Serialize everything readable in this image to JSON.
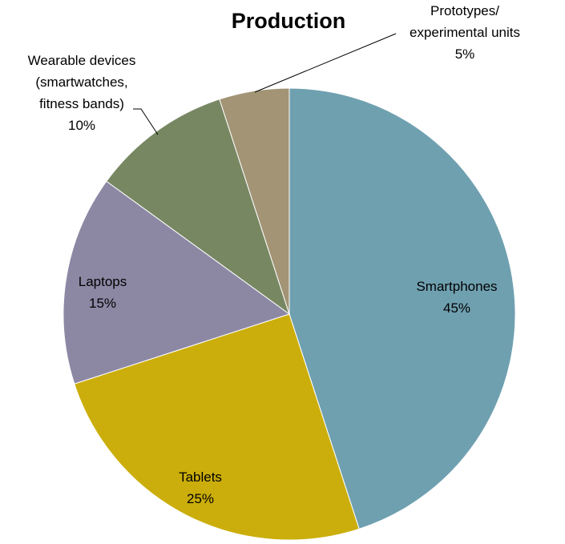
{
  "chart_data": {
    "type": "pie",
    "title": "Production",
    "start_angle_deg": 0,
    "direction": "clockwise",
    "slices": [
      {
        "label_lines": [
          "Smartphones"
        ],
        "percent_label": "45%",
        "value": 45,
        "color": "#6fa0b0"
      },
      {
        "label_lines": [
          "Tablets"
        ],
        "percent_label": "25%",
        "value": 25,
        "color": "#cbae0b"
      },
      {
        "label_lines": [
          "Laptops"
        ],
        "percent_label": "15%",
        "value": 15,
        "color": "#8c88a4"
      },
      {
        "label_lines": [
          "Wearable devices",
          "(smartwatches,",
          "fitness bands)"
        ],
        "percent_label": "10%",
        "value": 10,
        "color": "#778762"
      },
      {
        "label_lines": [
          "Prototypes/",
          "experimental units"
        ],
        "percent_label": "5%",
        "value": 5,
        "color": "#a29475"
      }
    ]
  }
}
